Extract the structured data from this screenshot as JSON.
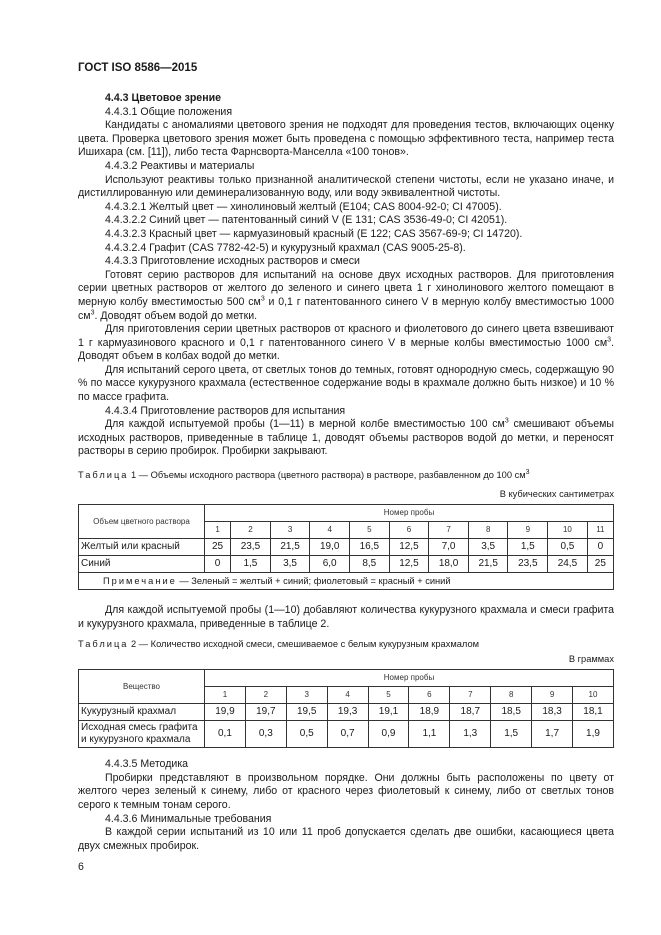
{
  "header": "ГОСТ ISO 8586—2015",
  "s1": {
    "heading": "4.4.3 Цветовое зрение",
    "p0": "4.4.3.1 Общие положения",
    "p1": "Кандидаты с аномалиями цветового зрения не подходят для проведения тестов, включающих оценку цвета. Проверка цветового зрения может быть проведена с помощью эффективного теста, например теста Ишихара (см. [11]), либо теста Фарнсворта-Манселла «100 тонов».",
    "p2": "4.4.3.2 Реактивы и материалы",
    "p3": "Используют реактивы только признанной аналитической степени чистоты, если не указано иначе, и дистиллированную или деминерализованную воду, или воду эквивалентной чистоты.",
    "p4": "4.4.3.2.1 Желтый цвет — хинолиновый желтый (Е104; CAS 8004-92-0; CI 47005).",
    "p5": "4.4.3.2.2 Синий цвет — патентованный синий V (Е 131; CAS 3536-49-0; CI 42051).",
    "p6": "4.4.3.2.3 Красный цвет — кармуазиновый красный (Е 122; CAS 3567-69-9; CI 14720).",
    "p7": "4.4.3.2.4 Графит (CAS 7782-42-5) и кукурузный крахмал (CAS 9005-25-8).",
    "p8": "4.4.3.3 Приготовление исходных растворов и смеси",
    "p9a": "Готовят серию растворов для испытаний на основе двух исходных растворов. Для приготовления серии цветных растворов от желтого до зеленого и синего цвета 1 г хинолинового желтого помещают в мерную колбу вместимостью 500 см",
    "p9b": " и 0,1 г патентованного синего V в мерную колбу вместимостью 1000 см",
    "p9c": ". Доводят объем водой до метки.",
    "p10a": "Для приготовления серии цветных растворов от красного и фиолетового до синего цвета взвешивают 1 г кармуазинового красного и 0,1 г патентованного синего V в мерные колбы вместимостью 1000 см",
    "p10b": ". Доводят объем в колбах водой до метки.",
    "p11": "Для испытаний серого цвета, от светлых тонов до темных, готовят однородную смесь, содержащую 90 % по массе кукурузного крахмала (естественное содержание воды в крахмале должно быть низкое) и 10 % по массе графита.",
    "p12": "4.4.3.4 Приготовление растворов для испытания",
    "p13a": "Для каждой испытуемой пробы (1—11) в мерной колбе вместимостью 100 см",
    "p13b": " смешивают объемы исходных растворов, приведенные в таблице 1, доводят объемы растворов водой до метки, и переносят растворы в серию пробирок. Пробирки закрывают.",
    "sup": "3"
  },
  "table1": {
    "label": "Таблица",
    "caption": " 1 — Объемы исходного раствора (цветного раствора) в растворе, разбавленном до 100 см",
    "unit": "В кубических сантиметрах",
    "row_header": "Объем цветного раствора",
    "group_header": "Номер пробы",
    "columns": [
      "1",
      "2",
      "3",
      "4",
      "5",
      "6",
      "7",
      "8",
      "9",
      "10",
      "11"
    ],
    "rows": [
      {
        "label": "Желтый или красный",
        "values": [
          "25",
          "23,5",
          "21,5",
          "19,0",
          "16,5",
          "12,5",
          "7,0",
          "3,5",
          "1,5",
          "0,5",
          "0"
        ]
      },
      {
        "label": "Синий",
        "values": [
          "0",
          "1,5",
          "3,5",
          "6,0",
          "8,5",
          "12,5",
          "18,0",
          "21,5",
          "23,5",
          "24,5",
          "25"
        ]
      }
    ],
    "note_label": "Примечание",
    "note": " — Зеленый = желтый + синий; фиолетовый = красный + синий"
  },
  "mid": "Для каждой испытуемой пробы (1—10) добавляют количества кукурузного крахмала и смеси графита и кукурузного крахмала, приведенные в таблице 2.",
  "table2": {
    "label": "Таблица",
    "caption": " 2 — Количество исходной смеси, смешиваемое с белым кукурузным крахмалом",
    "unit": "В граммах",
    "row_header": "Вещество",
    "group_header": "Номер пробы",
    "columns": [
      "1",
      "2",
      "3",
      "4",
      "5",
      "6",
      "7",
      "8",
      "9",
      "10"
    ],
    "rows": [
      {
        "label": "Кукурузный крахмал",
        "values": [
          "19,9",
          "19,7",
          "19,5",
          "19,3",
          "19,1",
          "18,9",
          "18,7",
          "18,5",
          "18,3",
          "18,1"
        ]
      },
      {
        "label": "Исходная смесь графита и кукурузного крахмала",
        "values": [
          "0,1",
          "0,3",
          "0,5",
          "0,7",
          "0,9",
          "1,1",
          "1,3",
          "1,5",
          "1,7",
          "1,9"
        ]
      }
    ]
  },
  "s2": {
    "p0": "4.4.3.5 Методика",
    "p1": "Пробирки представляют в произвольном порядке. Они должны быть расположены по цвету от желтого через зеленый к синему, либо от красного через фиолетовый к синему, либо от светлых тонов серого к темным тонам серого.",
    "p2": "4.4.3.6 Минимальные требования",
    "p3": "В каждой серии испытаний из 10 или 11 проб допускается сделать две ошибки, касающиеся цвета двух смежных пробирок."
  },
  "page_number": "6"
}
